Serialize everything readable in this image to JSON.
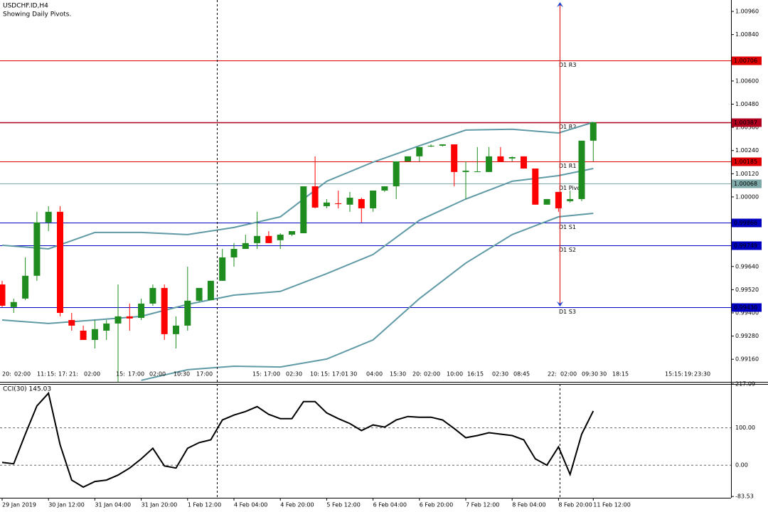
{
  "chart_data": [
    {
      "type": "candlestick",
      "title": "USDCHF.ID,H4",
      "subtitle": "Showing Daily Pivots.",
      "categories": [
        "29 Jan 2019",
        null,
        null,
        null,
        "30 Jan 12:00",
        null,
        null,
        null,
        "31 Jan 04:00",
        null,
        null,
        null,
        "31 Jan 20:00",
        null,
        null,
        null,
        "1 Feb 12:00",
        null,
        null,
        null,
        "4 Feb 04:00",
        null,
        null,
        null,
        "4 Feb 20:00",
        null,
        null,
        null,
        "5 Feb 12:00",
        null,
        null,
        null,
        "6 Feb 04:00",
        null,
        null,
        null,
        "6 Feb 20:00",
        null,
        null,
        null,
        "7 Feb 12:00",
        null,
        null,
        null,
        "8 Feb 04:00",
        null,
        null,
        null,
        "8 Feb 20:00",
        null,
        null,
        "11 Feb 12:00"
      ],
      "open": [
        0.99547,
        0.9943,
        0.99474,
        0.99592,
        0.99868,
        0.99923,
        0.99363,
        0.99308,
        0.9926,
        0.99308,
        0.99345,
        0.99382,
        0.99374,
        0.99448,
        0.99529,
        0.9929,
        0.99334,
        0.99463,
        0.99466,
        0.99566,
        0.99687,
        0.99731,
        0.99761,
        0.99798,
        0.99776,
        0.99805,
        0.99812,
        1.00055,
        0.99952,
        0.99967,
        0.9996,
        0.99989,
        0.99941,
        1.00033,
        1.00055,
        1.00184,
        1.0021,
        1.00261,
        1.00265,
        1.00272,
        1.00129,
        1.00129,
        1.00129,
        1.0021,
        1.00199,
        1.0021,
        1.00147,
        0.9996,
        1.00026,
        0.99978,
        0.99989,
        1.00291
      ],
      "high": [
        0.99566,
        0.99474,
        0.99687,
        0.99923,
        0.99952,
        0.99952,
        0.994,
        0.99334,
        0.99363,
        0.99363,
        0.99547,
        0.99448,
        0.99474,
        0.99547,
        0.99547,
        0.99382,
        0.99639,
        0.99529,
        0.99566,
        0.99731,
        0.99761,
        0.99805,
        0.99923,
        0.99823,
        0.99812,
        0.99823,
        1.00055,
        1.0021,
        0.99989,
        1.00033,
        1.00026,
        0.99996,
        1.00033,
        1.00055,
        1.00184,
        1.0021,
        1.00258,
        1.00272,
        1.00272,
        1.00272,
        1.00184,
        1.00258,
        1.00258,
        1.00258,
        1.0021,
        1.0021,
        1.00147,
        0.99989,
        1.00026,
        1.00033,
        1.00291,
        1.00386
      ],
      "low": [
        0.9943,
        0.994,
        0.99466,
        0.99566,
        0.99823,
        0.99382,
        0.99308,
        0.9926,
        0.99216,
        0.9926,
        0.99043,
        0.99308,
        0.99363,
        0.99437,
        0.9926,
        0.99216,
        0.99308,
        0.99456,
        0.99466,
        0.99566,
        0.99639,
        0.99731,
        0.99731,
        0.99761,
        0.99731,
        0.99798,
        0.99812,
        0.99941,
        0.99941,
        0.99941,
        0.99923,
        0.99868,
        0.99923,
        1.00026,
        0.99989,
        1.00184,
        1.00184,
        1.00258,
        1.00261,
        1.00055,
        0.99989,
        1.00129,
        1.00129,
        1.00184,
        1.00184,
        1.00147,
        0.9996,
        0.9996,
        0.99923,
        0.99971,
        0.99978,
        1.00184
      ],
      "close": [
        0.99437,
        0.99456,
        0.99592,
        0.99868,
        0.99923,
        0.994,
        0.99334,
        0.9926,
        0.99316,
        0.99345,
        0.99382,
        0.99371,
        0.99448,
        0.99529,
        0.9929,
        0.99334,
        0.99463,
        0.99529,
        0.99566,
        0.99687,
        0.99731,
        0.99761,
        0.99798,
        0.99761,
        0.99805,
        0.99823,
        1.00055,
        0.99945,
        0.99971,
        0.99963,
        0.99996,
        0.99941,
        1.00033,
        1.00055,
        1.00184,
        1.0021,
        1.00258,
        1.00265,
        1.00272,
        1.00129,
        1.00136,
        1.00132,
        1.0021,
        1.00184,
        1.00206,
        1.00147,
        0.9996,
        0.99989,
        0.99941,
        0.99989,
        1.00291,
        1.00386
      ],
      "up_color": "#1e8c1e",
      "down_color": "#ff0000",
      "bands": {
        "x": [
          0,
          4,
          8,
          12,
          16,
          20,
          24,
          28,
          32,
          36,
          40,
          44,
          48,
          51
        ],
        "color": "#5f9aa6",
        "series": [
          {
            "values": [
              0.9975,
              0.99731,
              0.99816,
              0.99816,
              0.99805,
              0.99842,
              0.99897,
              1.00081,
              1.0018,
              1.00265,
              1.00346,
              1.0035,
              1.00331,
              1.00386
            ]
          },
          {
            "values": [
              0.99363,
              0.99345,
              0.99363,
              0.99382,
              0.99444,
              0.99492,
              0.99511,
              0.99603,
              0.99702,
              0.99879,
              0.99989,
              1.00081,
              1.0011,
              1.00147
            ]
          },
          {
            "values": [
              null,
              null,
              null,
              0.99051,
              0.99106,
              0.99124,
              0.9912,
              0.99161,
              0.9926,
              0.99474,
              0.99658,
              0.99805,
              0.99897,
              0.99915
            ]
          }
        ]
      },
      "pivots": [
        {
          "name": "D1 R3",
          "value": 1.00706,
          "label": "1.00706",
          "color": "#e00000"
        },
        {
          "name": "D1 R2",
          "value": 1.00387,
          "label": "1.00387",
          "color": "#b00020"
        },
        {
          "name": "D1 R1",
          "value": 1.00185,
          "label": "1.00185",
          "color": "#e00000"
        },
        {
          "name": "D1 Pivot",
          "value": 1.00068,
          "label": "1.00068",
          "color": "#7fa8a8"
        },
        {
          "name": "D1 S1",
          "value": 0.99866,
          "label": "0.99866",
          "color": "#0000c0"
        },
        {
          "name": "D1 S2",
          "value": 0.99749,
          "label": "0.99749",
          "color": "#0000c0"
        },
        {
          "name": "D1 S3",
          "value": 0.9943,
          "label": "0.99430",
          "color": "#0000c0"
        }
      ],
      "session_labels": [
        "20:",
        "02:00",
        "11:",
        "15:",
        "17:",
        "21:",
        "02:00",
        "15:",
        "17:00",
        "02:00",
        "10:30",
        "17:00",
        "15:",
        "17:00",
        "02:30",
        "10:",
        "15:",
        "17:01",
        "30",
        "04:00",
        "15:30",
        "20:",
        "02:00",
        "10:00",
        "16:15",
        "02:30",
        "08:45",
        "22:",
        "02:00",
        "09:30",
        "30",
        "18:15",
        "15:",
        "15:",
        "19:",
        "23:30"
      ],
      "ylim": [
        0.99043,
        1.01019
      ],
      "yticks": [
        {
          "value": 1.0096,
          "label": "1.00960"
        },
        {
          "value": 1.0084,
          "label": "1.00840"
        },
        {
          "value": 1.006,
          "label": "1.00600"
        },
        {
          "value": 1.0048,
          "label": "1.00480"
        },
        {
          "value": 1.0036,
          "label": "1.00360"
        },
        {
          "value": 1.0024,
          "label": "1.00240"
        },
        {
          "value": 1.0012,
          "label": "1.00120"
        },
        {
          "value": 1.0,
          "label": "1.00000"
        },
        {
          "value": 0.9964,
          "label": "0.99640"
        },
        {
          "value": 0.9952,
          "label": "0.99520"
        },
        {
          "value": 0.994,
          "label": "0.99400"
        },
        {
          "value": 0.9928,
          "label": "0.99280"
        },
        {
          "value": 0.9916,
          "label": "0.99160"
        }
      ]
    },
    {
      "type": "line",
      "title": "CCI(30) 145.03",
      "values": [
        7.5,
        3.8,
        83.0,
        158.5,
        192.5,
        54.7,
        -39.6,
        -58.5,
        -43.4,
        -39.6,
        -26.4,
        -7.5,
        17.0,
        45.3,
        -1.9,
        -7.5,
        45.3,
        60.4,
        67.9,
        120.8,
        134.0,
        143.4,
        156.6,
        135.8,
        124.5,
        124.5,
        169.8,
        169.8,
        139.6,
        124.5,
        111.3,
        92.5,
        107.5,
        101.9,
        120.8,
        130.2,
        128.3,
        128.3,
        120.8,
        98.1,
        73.6,
        79.2,
        86.8,
        83.0,
        79.2,
        67.9,
        17.0,
        0,
        49.1,
        -24.5,
        83.0,
        145.03
      ],
      "color": "#000000",
      "ylim": [
        -87,
        217
      ],
      "yticks": [
        {
          "value": 217.09,
          "label": "217.09"
        },
        {
          "value": 100,
          "label": "100.00"
        },
        {
          "value": 0,
          "label": "0.00"
        },
        {
          "value": -83.53,
          "label": "-83.53"
        }
      ]
    }
  ]
}
